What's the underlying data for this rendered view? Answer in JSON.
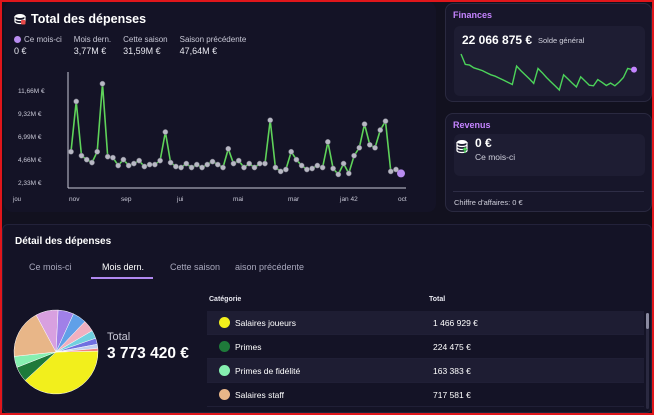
{
  "expenses": {
    "title": "Total des dépenses",
    "icon": "coins-icon",
    "stats": [
      {
        "label": "Ce mois-ci",
        "value": "0 €"
      },
      {
        "label": "Mois dern.",
        "value": "3,77M €"
      },
      {
        "label": "Cette saison",
        "value": "31,59M €"
      },
      {
        "label": "Saison précédente",
        "value": "47,64M €"
      }
    ]
  },
  "chart_data": {
    "type": "line",
    "title": "",
    "xlabel": "",
    "ylabel": "",
    "y_ticks": [
      "11,66M €",
      "9,32M €",
      "6,99M €",
      "4,66M €",
      "2,33M €"
    ],
    "y_tick_values": [
      11.66,
      9.32,
      6.99,
      4.66,
      2.33
    ],
    "x_ticks": [
      "nov",
      "sep",
      "jui",
      "mai",
      "mar",
      "jan 42",
      "oct"
    ],
    "x_corner_label": "jou",
    "ylim": [
      2.33,
      11.66
    ],
    "grid": false,
    "series": [
      {
        "color": "#5fd35a",
        "values": [
          5.4,
          10.5,
          5.0,
          4.6,
          4.3,
          5.4,
          12.3,
          4.9,
          4.8,
          4.0,
          4.6,
          4.0,
          4.2,
          4.5,
          3.9,
          4.1,
          4.1,
          4.5,
          7.4,
          4.3,
          3.9,
          3.8,
          4.2,
          3.8,
          4.1,
          3.8,
          4.1,
          4.4,
          4.1,
          3.8,
          5.7,
          4.2,
          4.5,
          3.8,
          4.2,
          3.8,
          4.2,
          4.2,
          8.6,
          3.8,
          3.4,
          3.6,
          5.4,
          4.6,
          4.0,
          3.6,
          3.7,
          4.0,
          3.8,
          6.4,
          3.7,
          3.1,
          4.2,
          3.2,
          5.0,
          5.8,
          8.2,
          6.1,
          5.8,
          7.6,
          8.5,
          3.4,
          3.6
        ]
      }
    ],
    "current_marker_color": "#b88cf0"
  },
  "finances": {
    "title": "Finances",
    "amount": "22 066 875 €",
    "subtitle": "Solde général",
    "spark_values": [
      19,
      16,
      15.8,
      15,
      14.6,
      14.2,
      13.6,
      13,
      12.6,
      12,
      11.4,
      10.8,
      10.2,
      15.5,
      14.2,
      13,
      11.8,
      10.5,
      14.8,
      13.6,
      12.2,
      11,
      9.8,
      8.6,
      13,
      11.8,
      10.6,
      9.5,
      12.4,
      11.2,
      10,
      9.8,
      11.6,
      10.8,
      9.9,
      10.6,
      9.8,
      10.9,
      12.2,
      14.8,
      14.5
    ]
  },
  "revenus": {
    "title": "Revenus",
    "amount": "0 €",
    "subtitle": "Ce mois-ci",
    "footer": "Chiffre d'affaires:  0 €"
  },
  "detail": {
    "title": "Détail des dépenses",
    "tabs": [
      "Ce mois-ci",
      "Mois dern.",
      "Cette saison",
      "aison précédente"
    ],
    "active_tab": 1,
    "total_label": "Total",
    "total_value": "3 773 420 €",
    "table": {
      "headers": [
        "Catégorie",
        "Total"
      ],
      "rows": [
        {
          "category": "Salaires joueurs",
          "total": "1 466 929 €",
          "color": "#f2ef1c"
        },
        {
          "category": "Primes",
          "total": "224 475 €",
          "color": "#1e7a3a"
        },
        {
          "category": "Primes de fidélité",
          "total": "163 383 €",
          "color": "#86efb0"
        },
        {
          "category": "Salaires staff",
          "total": "717 581 €",
          "color": "#e8b688"
        }
      ]
    },
    "pie": [
      {
        "value": 1466929,
        "color": "#f2ef1c"
      },
      {
        "value": 224475,
        "color": "#1e7a3a"
      },
      {
        "value": 163383,
        "color": "#86efb0"
      },
      {
        "value": 717581,
        "color": "#e8b688"
      },
      {
        "value": 330000,
        "color": "#d8a0e0"
      },
      {
        "value": 230000,
        "color": "#a080e8"
      },
      {
        "value": 200000,
        "color": "#60a0e8"
      },
      {
        "value": 170000,
        "color": "#f0b0c0"
      },
      {
        "value": 120000,
        "color": "#70d0e0"
      },
      {
        "value": 90000,
        "color": "#7070e0"
      },
      {
        "value": 60000,
        "color": "#c0d0f0"
      },
      {
        "value": 40000,
        "color": "#f08080"
      }
    ]
  }
}
